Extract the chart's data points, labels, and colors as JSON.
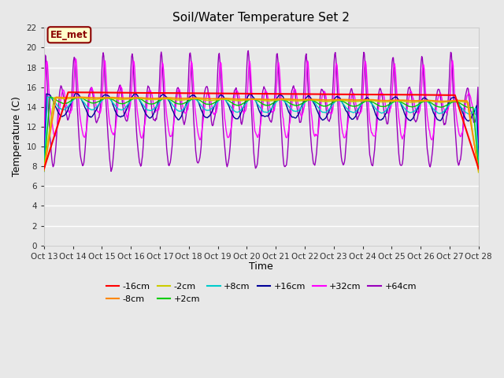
{
  "title": "Soil/Water Temperature Set 2",
  "xlabel": "Time",
  "ylabel": "Temperature (C)",
  "ylim": [
    0,
    22
  ],
  "yticks": [
    0,
    2,
    4,
    6,
    8,
    10,
    12,
    14,
    16,
    18,
    20,
    22
  ],
  "plot_bg_color": "#e8e8e8",
  "annotation_text": "EE_met",
  "annotation_bg": "#ffffcc",
  "annotation_border": "#8b0000",
  "n_days": 15,
  "xtick_labels": [
    "Oct 13",
    "Oct 14",
    "Oct 15",
    "Oct 16",
    "Oct 17",
    "Oct 18",
    "Oct 19",
    "Oct 20",
    "Oct 21",
    "Oct 22",
    "Oct 23",
    "Oct 24",
    "Oct 25",
    "Oct 26",
    "Oct 27",
    "Oct 28"
  ],
  "series_colors": {
    "-16cm": "#ff0000",
    "-8cm": "#ff8800",
    "-2cm": "#cccc00",
    "+2cm": "#00cc00",
    "+8cm": "#00cccc",
    "+16cm": "#000099",
    "+32cm": "#ff00ff",
    "+64cm": "#9900bb"
  },
  "legend_order": [
    "-16cm",
    "-8cm",
    "-2cm",
    "+2cm",
    "+8cm",
    "+16cm",
    "+32cm",
    "+64cm"
  ]
}
